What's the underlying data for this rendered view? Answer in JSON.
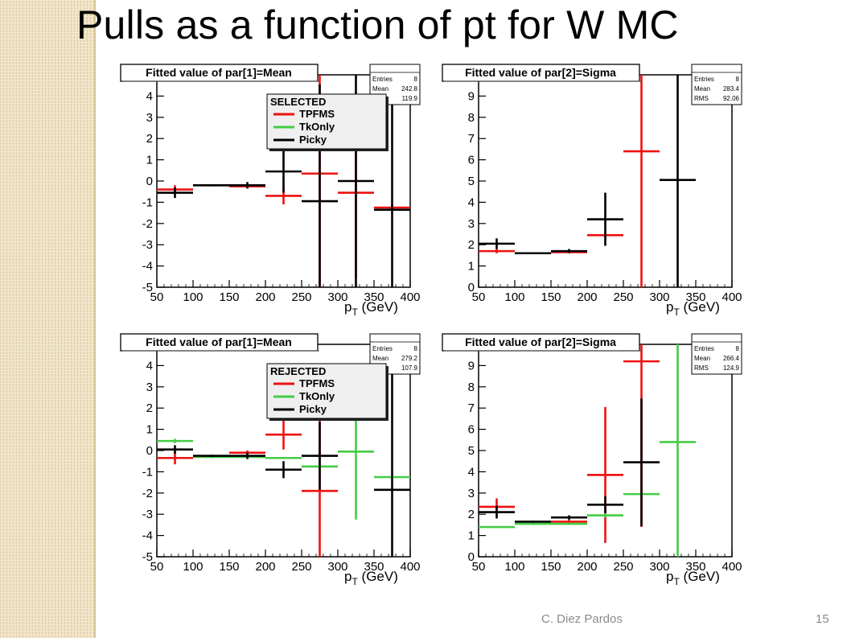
{
  "slide": {
    "title": "Pulls as a function of pt for W MC",
    "author": "C. Diez Pardos",
    "page": "15"
  },
  "colors": {
    "TPFMS": "#ee1111",
    "TkOnly": "#44cc44",
    "Picky": "#000000"
  },
  "chart_data": [
    {
      "type": "scatter",
      "title": "Fitted value of par[1]=Mean",
      "xlabel": "p_T (GeV)",
      "xlim": [
        50,
        400
      ],
      "ylim": [
        -5,
        5
      ],
      "xticks": [
        50,
        100,
        150,
        200,
        250,
        300,
        350,
        400
      ],
      "yticks": [
        -5,
        -4,
        -3,
        -2,
        -1,
        0,
        1,
        2,
        3,
        4
      ],
      "stats": {
        "entries": "8",
        "mean": "242.8",
        "rms": "119.9"
      },
      "legend": {
        "title": "SELECTED",
        "entries": [
          "TPFMS",
          "TkOnly",
          "Picky"
        ]
      },
      "series": [
        {
          "name": "TPFMS",
          "points": [
            {
              "x": 75,
              "y": -0.4,
              "xerr": 25,
              "yerr": 0.2
            },
            {
              "x": 175,
              "y": -0.25,
              "xerr": 25,
              "yerr": 0.1
            },
            {
              "x": 225,
              "y": -0.7,
              "xerr": 25,
              "yerr": 0.4
            },
            {
              "x": 275,
              "y": 0.35,
              "xerr": 25,
              "yerr": 5.5
            },
            {
              "x": 325,
              "y": -0.55,
              "xerr": 25,
              "yerr": 4.0
            },
            {
              "x": 375,
              "y": -1.25,
              "xerr": 25,
              "yerr": 0.15
            }
          ]
        },
        {
          "name": "Picky",
          "points": [
            {
              "x": 75,
              "y": -0.55,
              "xerr": 25,
              "yerr": 0.25
            },
            {
              "x": 125,
              "y": -0.2,
              "xerr": 25,
              "yerr": 0.05
            },
            {
              "x": 175,
              "y": -0.2,
              "xerr": 25,
              "yerr": 0.15
            },
            {
              "x": 225,
              "y": 0.45,
              "xerr": 25,
              "yerr": 1.0
            },
            {
              "x": 275,
              "y": -0.95,
              "xerr": 25,
              "yerr": 5.5
            },
            {
              "x": 325,
              "y": 0.0,
              "xerr": 25,
              "yerr": 5.5
            },
            {
              "x": 375,
              "y": -1.35,
              "xerr": 25,
              "yerr": 5.5
            }
          ]
        }
      ]
    },
    {
      "type": "scatter",
      "title": "Fitted value of par[2]=Sigma",
      "xlabel": "p_T (GeV)",
      "xlim": [
        50,
        400
      ],
      "ylim": [
        0,
        10
      ],
      "xticks": [
        50,
        100,
        150,
        200,
        250,
        300,
        350,
        400
      ],
      "yticks": [
        0,
        1,
        2,
        3,
        4,
        5,
        6,
        7,
        8,
        9
      ],
      "stats": {
        "entries": "8",
        "mean": "283.4",
        "rms": "92.06"
      },
      "series": [
        {
          "name": "TPFMS",
          "points": [
            {
              "x": 75,
              "y": 1.7,
              "xerr": 25,
              "yerr": 0.1
            },
            {
              "x": 175,
              "y": 1.65,
              "xerr": 25,
              "yerr": 0.05
            },
            {
              "x": 225,
              "y": 2.45,
              "xerr": 25,
              "yerr": 0.15
            },
            {
              "x": 275,
              "y": 6.4,
              "xerr": 25,
              "yerr": 10
            }
          ]
        },
        {
          "name": "Picky",
          "points": [
            {
              "x": 75,
              "y": 2.05,
              "xerr": 25,
              "yerr": 0.25
            },
            {
              "x": 125,
              "y": 1.6,
              "xerr": 25,
              "yerr": 0.02
            },
            {
              "x": 175,
              "y": 1.7,
              "xerr": 25,
              "yerr": 0.1
            },
            {
              "x": 225,
              "y": 3.2,
              "xerr": 25,
              "yerr": 1.25
            },
            {
              "x": 325,
              "y": 5.05,
              "xerr": 25,
              "yerr": 10
            }
          ]
        }
      ]
    },
    {
      "type": "scatter",
      "title": "Fitted value of par[1]=Mean",
      "xlabel": "p_T (GeV)",
      "xlim": [
        50,
        400
      ],
      "ylim": [
        -5,
        5
      ],
      "xticks": [
        50,
        100,
        150,
        200,
        250,
        300,
        350,
        400
      ],
      "yticks": [
        -5,
        -4,
        -3,
        -2,
        -1,
        0,
        1,
        2,
        3,
        4
      ],
      "stats": {
        "entries": "8",
        "mean": "279.2",
        "rms": "107.9"
      },
      "legend": {
        "title": "REJECTED",
        "entries": [
          "TPFMS",
          "TkOnly",
          "Picky"
        ]
      },
      "series": [
        {
          "name": "TPFMS",
          "points": [
            {
              "x": 75,
              "y": -0.35,
              "xerr": 25,
              "yerr": 0.3
            },
            {
              "x": 175,
              "y": -0.1,
              "xerr": 25,
              "yerr": 0.1
            },
            {
              "x": 225,
              "y": 0.75,
              "xerr": 25,
              "yerr": 0.7
            },
            {
              "x": 275,
              "y": -1.9,
              "xerr": 25,
              "yerr": 6
            }
          ]
        },
        {
          "name": "TkOnly",
          "points": [
            {
              "x": 75,
              "y": 0.45,
              "xerr": 25,
              "yerr": 0.1
            },
            {
              "x": 125,
              "y": -0.3,
              "xerr": 25,
              "yerr": 0.05
            },
            {
              "x": 175,
              "y": -0.3,
              "xerr": 25,
              "yerr": 0.05
            },
            {
              "x": 225,
              "y": -0.35,
              "xerr": 25,
              "yerr": 0.05
            },
            {
              "x": 275,
              "y": -0.75,
              "xerr": 25,
              "yerr": 0.3
            },
            {
              "x": 325,
              "y": -0.05,
              "xerr": 25,
              "yerr": 3.2
            },
            {
              "x": 375,
              "y": -1.25,
              "xerr": 25,
              "yerr": 0.05
            }
          ]
        },
        {
          "name": "Picky",
          "points": [
            {
              "x": 75,
              "y": 0.05,
              "xerr": 25,
              "yerr": 0.2
            },
            {
              "x": 125,
              "y": -0.25,
              "xerr": 25,
              "yerr": 0.05
            },
            {
              "x": 175,
              "y": -0.25,
              "xerr": 25,
              "yerr": 0.15
            },
            {
              "x": 225,
              "y": -0.9,
              "xerr": 25,
              "yerr": 0.4
            },
            {
              "x": 275,
              "y": -0.25,
              "xerr": 25,
              "yerr": 1.6
            },
            {
              "x": 375,
              "y": -1.85,
              "xerr": 25,
              "yerr": 5.5
            }
          ]
        }
      ]
    },
    {
      "type": "scatter",
      "title": "Fitted value of par[2]=Sigma",
      "xlabel": "p_T (GeV)",
      "xlim": [
        50,
        400
      ],
      "ylim": [
        0,
        10
      ],
      "xticks": [
        50,
        100,
        150,
        200,
        250,
        300,
        350,
        400
      ],
      "yticks": [
        0,
        1,
        2,
        3,
        4,
        5,
        6,
        7,
        8,
        9
      ],
      "stats": {
        "entries": "8",
        "mean": "266.4",
        "rms": "124.9"
      },
      "series": [
        {
          "name": "TPFMS",
          "points": [
            {
              "x": 75,
              "y": 2.35,
              "xerr": 25,
              "yerr": 0.4
            },
            {
              "x": 175,
              "y": 1.65,
              "xerr": 25,
              "yerr": 0.1
            },
            {
              "x": 225,
              "y": 3.85,
              "xerr": 25,
              "yerr": 3.2
            },
            {
              "x": 275,
              "y": 9.2,
              "xerr": 25,
              "yerr": 7.8
            }
          ]
        },
        {
          "name": "TkOnly",
          "points": [
            {
              "x": 75,
              "y": 1.4,
              "xerr": 25,
              "yerr": 0.03
            },
            {
              "x": 125,
              "y": 1.55,
              "xerr": 25,
              "yerr": 0.05
            },
            {
              "x": 175,
              "y": 1.55,
              "xerr": 25,
              "yerr": 0.05
            },
            {
              "x": 225,
              "y": 1.95,
              "xerr": 25,
              "yerr": 0.1
            },
            {
              "x": 275,
              "y": 2.95,
              "xerr": 25,
              "yerr": 0.05
            },
            {
              "x": 325,
              "y": 5.4,
              "xerr": 25,
              "yerr": 5.4
            }
          ]
        },
        {
          "name": "Picky",
          "points": [
            {
              "x": 75,
              "y": 2.1,
              "xerr": 25,
              "yerr": 0.3
            },
            {
              "x": 125,
              "y": 1.65,
              "xerr": 25,
              "yerr": 0.05
            },
            {
              "x": 175,
              "y": 1.85,
              "xerr": 25,
              "yerr": 0.1
            },
            {
              "x": 225,
              "y": 2.45,
              "xerr": 25,
              "yerr": 0.4
            },
            {
              "x": 275,
              "y": 4.45,
              "xerr": 25,
              "yerr": 3.0
            }
          ]
        }
      ]
    }
  ]
}
